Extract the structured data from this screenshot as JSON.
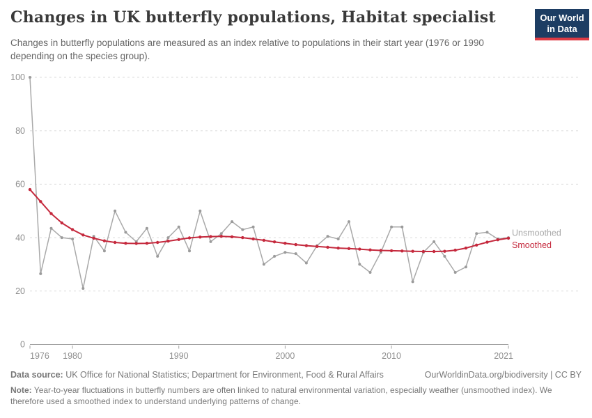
{
  "header": {
    "title": "Changes in UK butterfly populations, Habitat specialist",
    "subtitle": "Changes in butterfly populations are measured as an index relative to populations in their start year (1976 or 1990 depending on the species group).",
    "logo": {
      "line1": "Our World",
      "line2": "in Data",
      "bg_color": "#1d3d63",
      "stripe_color": "#dd3b44"
    }
  },
  "chart_data": {
    "type": "line",
    "title": "Changes in UK butterfly populations, Habitat specialist",
    "x": [
      1976,
      1977,
      1978,
      1979,
      1980,
      1981,
      1982,
      1983,
      1984,
      1985,
      1986,
      1987,
      1988,
      1989,
      1990,
      1991,
      1992,
      1993,
      1994,
      1995,
      1996,
      1997,
      1998,
      1999,
      2000,
      2001,
      2002,
      2003,
      2004,
      2005,
      2006,
      2007,
      2008,
      2009,
      2010,
      2011,
      2012,
      2013,
      2014,
      2015,
      2016,
      2017,
      2018,
      2019,
      2020,
      2021
    ],
    "series": [
      {
        "name": "Unsmoothed",
        "color": "#a9a9a9",
        "marker_color": "#9b9b9b",
        "values": [
          100,
          26.5,
          43.5,
          40,
          39.5,
          21,
          40.5,
          35,
          50,
          42,
          38.5,
          43.5,
          33,
          40,
          44,
          35,
          50,
          38.5,
          41.5,
          46,
          43,
          44,
          30,
          33,
          34.5,
          34,
          30.5,
          37,
          40.5,
          39.5,
          46,
          30,
          27,
          34.5,
          44,
          44,
          23.5,
          34.5,
          38.5,
          33,
          27,
          29,
          41.5,
          42,
          39.5,
          40
        ]
      },
      {
        "name": "Smoothed",
        "color": "#c5293d",
        "marker_color": "#c5293d",
        "values": [
          58,
          53.5,
          49,
          45.5,
          43,
          41,
          39.8,
          38.8,
          38.2,
          37.9,
          37.8,
          37.9,
          38.2,
          38.7,
          39.3,
          39.9,
          40.2,
          40.4,
          40.5,
          40.3,
          40,
          39.5,
          39,
          38.4,
          37.9,
          37.4,
          37,
          36.7,
          36.4,
          36.1,
          35.9,
          35.7,
          35.4,
          35.2,
          35.1,
          35,
          34.9,
          34.8,
          34.8,
          34.9,
          35.3,
          36.1,
          37.2,
          38.3,
          39.2,
          39.8
        ]
      }
    ],
    "ylim": [
      0,
      100
    ],
    "yticks": [
      0,
      20,
      40,
      60,
      80,
      100
    ],
    "xticks": [
      1976,
      1980,
      1990,
      2000,
      2010,
      2021
    ],
    "grid": "horizontal-dashed",
    "legend": "end-of-line-labels",
    "axis_color": "#a3a3a3",
    "grid_color": "#dbdbdb",
    "tick_label_color": "#8f8f8f"
  },
  "footer": {
    "data_source_label": "Data source:",
    "data_source": "UK Office for National Statistics; Department for Environment, Food & Rural Affairs",
    "attribution": "OurWorldinData.org/biodiversity | CC BY",
    "note_label": "Note:",
    "note": "Year-to-year fluctuations in butterfly numbers are often linked to natural environmental variation, especially weather (unsmoothed index). We therefore used a smoothed index to understand underlying patterns of change."
  }
}
